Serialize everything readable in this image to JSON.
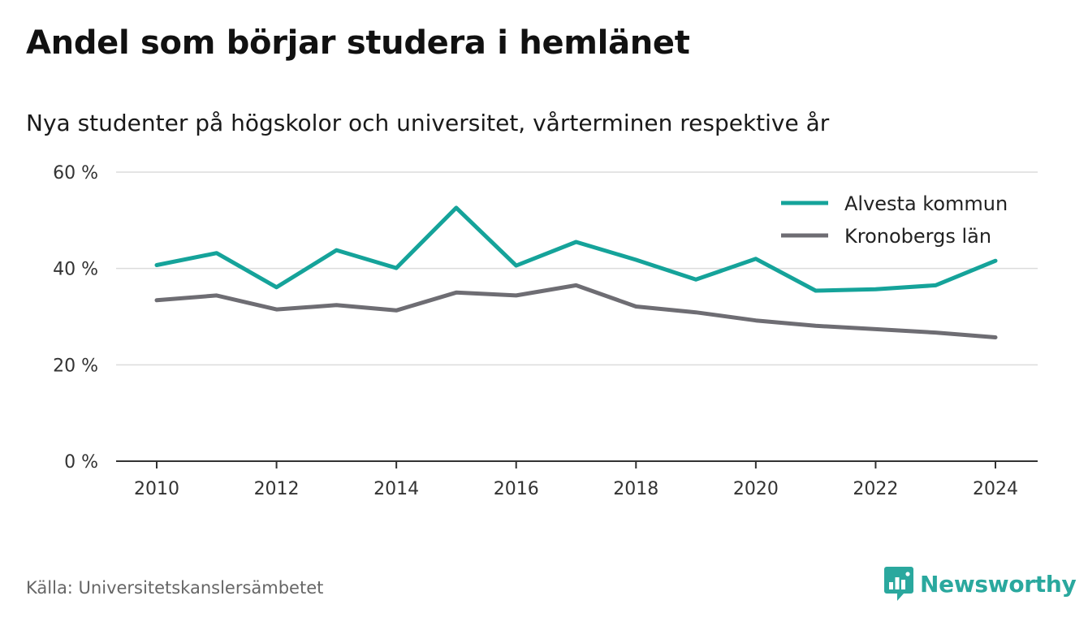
{
  "title": "Andel som börjar studera i hemlänet",
  "subtitle": "Nya studenter på högskolor och universitet, vårterminen respektive år",
  "source": "Källa: Universitetskanslersämbetet",
  "brand": {
    "name": "Newsworthy",
    "icon": "newsworthy-logo-icon",
    "color": "#2aa89e"
  },
  "chart_data": {
    "type": "line",
    "title": "Andel som börjar studera i hemlänet",
    "subtitle": "Nya studenter på högskolor och universitet, vårterminen respektive år",
    "x": [
      2010,
      2011,
      2012,
      2013,
      2014,
      2015,
      2016,
      2017,
      2018,
      2019,
      2020,
      2021,
      2022,
      2023,
      2024
    ],
    "x_ticks": [
      2010,
      2012,
      2014,
      2016,
      2018,
      2020,
      2022,
      2024
    ],
    "x_tick_labels": [
      "2010",
      "2012",
      "2014",
      "2016",
      "2018",
      "2020",
      "2022",
      "2024"
    ],
    "y_ticks": [
      0,
      20,
      40,
      60
    ],
    "y_tick_labels": [
      "0 %",
      "20 %",
      "40 %",
      "60 %"
    ],
    "ylim": [
      0,
      60
    ],
    "grid": true,
    "legend_position": "top-right",
    "series": [
      {
        "name": "Alvesta kommun",
        "color": "#15a39a",
        "values": [
          40.7,
          43.2,
          36.1,
          43.8,
          40.1,
          52.6,
          40.6,
          45.5,
          41.8,
          37.7,
          42.0,
          35.4,
          35.7,
          36.5,
          41.6
        ]
      },
      {
        "name": "Kronobergs län",
        "color": "#6e6d73",
        "values": [
          33.4,
          34.4,
          31.5,
          32.4,
          31.3,
          35.0,
          34.4,
          36.5,
          32.1,
          30.9,
          29.2,
          28.1,
          27.4,
          26.7,
          25.7
        ]
      }
    ]
  }
}
